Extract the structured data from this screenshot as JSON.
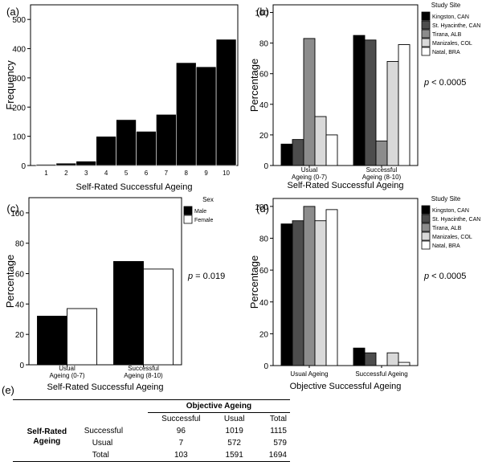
{
  "colors": {
    "black": "#000000",
    "dark": "#4d4d4d",
    "mid": "#8c8c8c",
    "light": "#d9d9d9",
    "white": "#ffffff"
  },
  "chart_data": [
    {
      "id": "a",
      "panel_label": "(a)",
      "type": "bar",
      "categories": [
        "1",
        "2",
        "3",
        "4",
        "5",
        "6",
        "7",
        "8",
        "9",
        "10"
      ],
      "values": [
        4,
        8,
        15,
        100,
        157,
        117,
        175,
        352,
        338,
        432
      ],
      "xlabel": "Self-Rated Successful Ageing",
      "ylabel": "Frequency",
      "ylim": [
        0,
        550
      ],
      "yticks": [
        0,
        100,
        200,
        300,
        400,
        500
      ],
      "grid": false
    },
    {
      "id": "b",
      "panel_label": "(b)",
      "type": "bar",
      "categories": [
        "Usual\nAgeing (0-7)",
        "Successful\nAgeing (8-10)"
      ],
      "series": [
        {
          "name": "Kingston, CAN",
          "color": "#000000",
          "values": [
            14,
            85
          ]
        },
        {
          "name": "St. Hyacinthe, CAN",
          "color": "#4d4d4d",
          "values": [
            17,
            82
          ]
        },
        {
          "name": "Tirana, ALB",
          "color": "#8c8c8c",
          "values": [
            83,
            16
          ]
        },
        {
          "name": "Manizales, COL",
          "color": "#d9d9d9",
          "values": [
            32,
            68
          ]
        },
        {
          "name": "Natal, BRA",
          "color": "#ffffff",
          "values": [
            20,
            79
          ]
        }
      ],
      "xlabel": "Self-Rated Successful Ageing",
      "ylabel": "Percentage",
      "ylim": [
        0,
        105
      ],
      "yticks": [
        0,
        20,
        40,
        60,
        80,
        100
      ],
      "legend_title": "Study Site",
      "annotation_p": "p",
      "annotation_rest": " < 0.0005"
    },
    {
      "id": "c",
      "panel_label": "(c)",
      "type": "bar",
      "categories": [
        "Usual\nAgeing (0-7)",
        "Successful\nAgeing (8-10)"
      ],
      "series": [
        {
          "name": "Male",
          "color": "#000000",
          "values": [
            32,
            68
          ]
        },
        {
          "name": "Female",
          "color": "#ffffff",
          "values": [
            37,
            63
          ]
        }
      ],
      "xlabel": "Self-Rated Successful Ageing",
      "ylabel": "Percentage",
      "ylim": [
        0,
        110
      ],
      "yticks": [
        0,
        20,
        40,
        60,
        80,
        100
      ],
      "legend_title": "Sex",
      "annotation_p": "p",
      "annotation_rest": " = 0.019"
    },
    {
      "id": "d",
      "panel_label": "(d)",
      "type": "bar",
      "categories": [
        "Usual Ageing",
        "Successful Ageing"
      ],
      "series": [
        {
          "name": "Kingston, CAN",
          "color": "#000000",
          "values": [
            89,
            11
          ]
        },
        {
          "name": "St. Hyacinthe, CAN",
          "color": "#4d4d4d",
          "values": [
            91,
            8
          ]
        },
        {
          "name": "Tirana, ALB",
          "color": "#8c8c8c",
          "values": [
            100,
            0
          ]
        },
        {
          "name": "Manizales, COL",
          "color": "#d9d9d9",
          "values": [
            91,
            8
          ]
        },
        {
          "name": "Natal, BRA",
          "color": "#ffffff",
          "values": [
            98,
            2
          ]
        }
      ],
      "xlabel": "Objective Successful Ageing",
      "ylabel": "Percentage",
      "ylim": [
        0,
        105
      ],
      "yticks": [
        0,
        20,
        40,
        60,
        80,
        100
      ],
      "legend_title": "Study Site",
      "annotation_p": "p",
      "annotation_rest": " < 0.0005"
    },
    {
      "id": "e",
      "panel_label": "(e)",
      "type": "table",
      "title": "Objective Ageing",
      "column_headers": [
        "Successful",
        "Usual",
        "Total"
      ],
      "row_group_label": "Self-Rated\nAgeing",
      "rows": [
        {
          "label": "Successful",
          "values": [
            "96",
            "1019",
            "1115"
          ]
        },
        {
          "label": "Usual",
          "values": [
            "7",
            "572",
            "579"
          ]
        },
        {
          "label": "Total",
          "values": [
            "103",
            "1591",
            "1694"
          ]
        }
      ]
    }
  ]
}
